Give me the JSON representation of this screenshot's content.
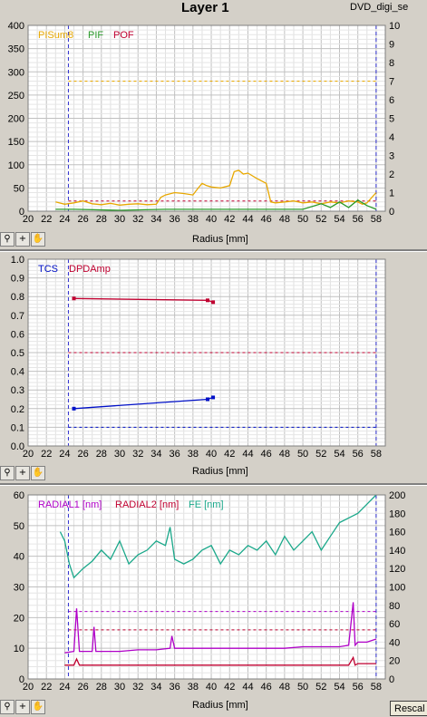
{
  "window": {
    "title": "Layer 1",
    "file_label": "DVD_digi_se"
  },
  "buttons": {
    "rescale": "Rescal"
  },
  "toolbar_icons": [
    "zoom-icon",
    "crosshair-icon",
    "pan-hand-icon"
  ],
  "chart_data": [
    {
      "type": "line",
      "xlabel": "Radius [mm]",
      "x_ticks": [
        "20",
        "22",
        "24",
        "26",
        "28",
        "30",
        "32",
        "34",
        "36",
        "38",
        "40",
        "42",
        "44",
        "46",
        "48",
        "50",
        "52",
        "54",
        "56",
        "58"
      ],
      "xlim": [
        20,
        59
      ],
      "ylim": [
        0,
        400
      ],
      "y_ticks": [
        "0",
        "50",
        "100",
        "150",
        "200",
        "250",
        "300",
        "350",
        "400"
      ],
      "y2lim": [
        0,
        10
      ],
      "y2_ticks": [
        "0",
        "1",
        "2",
        "3",
        "4",
        "5",
        "6",
        "7",
        "8",
        "9",
        "10"
      ],
      "vlines": [
        24.4,
        58
      ],
      "legend": [
        {
          "name": "PISum8",
          "color": "#e8a800"
        },
        {
          "name": "PIF",
          "color": "#2a9a2a"
        },
        {
          "name": "POF",
          "color": "#c00030"
        }
      ],
      "hlines": [
        {
          "y": 280,
          "color": "#e8a800"
        },
        {
          "y": 22,
          "color": "#c00030"
        }
      ],
      "series": [
        {
          "name": "PISum8",
          "color": "#e8a800",
          "axis": "left",
          "x": [
            23,
            24,
            25,
            26,
            27,
            28,
            29,
            30,
            31,
            32,
            33,
            34,
            34.5,
            35,
            36,
            37,
            38,
            38.5,
            39,
            39.5,
            40,
            41,
            42,
            42.5,
            43,
            43.5,
            44,
            45,
            46,
            46.5,
            47,
            48,
            49,
            50,
            51,
            52,
            53,
            54,
            55,
            56,
            56.5,
            57,
            58
          ],
          "y": [
            20,
            15,
            18,
            22,
            16,
            14,
            17,
            13,
            15,
            16,
            14,
            15,
            30,
            35,
            40,
            38,
            35,
            48,
            60,
            55,
            52,
            50,
            55,
            85,
            88,
            80,
            82,
            70,
            60,
            20,
            18,
            20,
            22,
            18,
            20,
            16,
            20,
            18,
            22,
            20,
            15,
            18,
            40
          ]
        },
        {
          "name": "PIF",
          "color": "#2a9a2a",
          "axis": "right",
          "x": [
            23,
            25,
            30,
            35,
            40,
            45,
            50,
            52,
            53,
            54,
            55,
            56,
            57,
            58
          ],
          "y": [
            0.1,
            0.1,
            0.05,
            0.1,
            0.1,
            0.1,
            0.1,
            0.4,
            0.2,
            0.5,
            0.2,
            0.6,
            0.3,
            0.1
          ]
        }
      ]
    },
    {
      "type": "line",
      "xlabel": "Radius [mm]",
      "x_ticks": [
        "20",
        "22",
        "24",
        "26",
        "28",
        "30",
        "32",
        "34",
        "36",
        "38",
        "40",
        "42",
        "44",
        "46",
        "48",
        "50",
        "52",
        "54",
        "56",
        "58"
      ],
      "xlim": [
        20,
        59
      ],
      "ylim": [
        0,
        1
      ],
      "y_ticks": [
        "0.0",
        "0.1",
        "0.2",
        "0.3",
        "0.4",
        "0.5",
        "0.6",
        "0.7",
        "0.8",
        "0.9",
        "1.0"
      ],
      "vlines": [
        24.4,
        58
      ],
      "legend": [
        {
          "name": "TCS",
          "color": "#0010c8"
        },
        {
          "name": "DPDAmp",
          "color": "#c00030"
        }
      ],
      "hlines": [
        {
          "y": 0.5,
          "color": "#c00030"
        },
        {
          "y": 0.1,
          "color": "#0010c8"
        }
      ],
      "series": [
        {
          "name": "DPDAmp",
          "color": "#c00030",
          "axis": "left",
          "x": [
            25,
            39.6,
            40.2
          ],
          "y": [
            0.79,
            0.78,
            0.77
          ]
        },
        {
          "name": "TCS",
          "color": "#0010c8",
          "axis": "left",
          "x": [
            25,
            39.6,
            40.2
          ],
          "y": [
            0.2,
            0.25,
            0.26
          ]
        }
      ]
    },
    {
      "type": "line",
      "xlabel": "Radius [mm]",
      "x_ticks": [
        "20",
        "22",
        "24",
        "26",
        "28",
        "30",
        "32",
        "34",
        "36",
        "38",
        "40",
        "42",
        "44",
        "46",
        "48",
        "50",
        "52",
        "54",
        "56",
        "58"
      ],
      "xlim": [
        20,
        59
      ],
      "ylim": [
        0,
        60
      ],
      "y_ticks": [
        "0",
        "10",
        "20",
        "30",
        "40",
        "50",
        "60"
      ],
      "y2lim": [
        0,
        200
      ],
      "y2_ticks": [
        "0",
        "20",
        "40",
        "60",
        "80",
        "100",
        "120",
        "140",
        "160",
        "180",
        "200"
      ],
      "vlines": [
        24.4,
        58
      ],
      "legend": [
        {
          "name": "RADIAL1 [nm]",
          "color": "#b000c8"
        },
        {
          "name": "RADIAL2 [nm]",
          "color": "#c00030"
        },
        {
          "name": "FE [nm]",
          "color": "#1aa88a"
        }
      ],
      "hlines": [
        {
          "y": 22,
          "color": "#b000c8"
        },
        {
          "y": 16,
          "color": "#c00030"
        }
      ],
      "series": [
        {
          "name": "FE [nm]",
          "color": "#1aa88a",
          "axis": "right",
          "x": [
            23.5,
            24,
            24.5,
            25,
            26,
            27,
            28,
            29,
            30,
            31,
            32,
            33,
            34,
            35,
            35.5,
            36,
            37,
            38,
            39,
            40,
            41,
            42,
            43,
            44,
            45,
            46,
            47,
            48,
            49,
            50,
            51,
            52,
            53,
            54,
            55,
            56,
            57,
            58
          ],
          "y": [
            160,
            150,
            125,
            110,
            120,
            128,
            140,
            130,
            150,
            125,
            135,
            140,
            150,
            145,
            165,
            130,
            125,
            130,
            140,
            145,
            125,
            140,
            135,
            145,
            140,
            150,
            135,
            155,
            140,
            150,
            160,
            140,
            155,
            170,
            175,
            180,
            190,
            200
          ]
        },
        {
          "name": "RADIAL1 [nm]",
          "color": "#b000c8",
          "axis": "left",
          "x": [
            24,
            25,
            25.3,
            25.6,
            26,
            27,
            27.2,
            27.4,
            28,
            30,
            32,
            34,
            35.5,
            35.7,
            36,
            38,
            40,
            42,
            44,
            46,
            48,
            50,
            52,
            54,
            55,
            55.5,
            55.7,
            56,
            57,
            58
          ],
          "y": [
            8.5,
            9,
            23,
            9,
            9,
            9,
            17,
            9,
            9,
            9,
            9.5,
            9.5,
            10,
            14,
            10,
            10,
            10,
            10,
            10,
            10,
            10,
            10.5,
            10.5,
            10.5,
            11,
            25,
            11,
            12,
            12,
            13
          ]
        },
        {
          "name": "RADIAL2 [nm]",
          "color": "#c00030",
          "axis": "left",
          "x": [
            24,
            25,
            25.3,
            25.6,
            26,
            28,
            30,
            32,
            34,
            36,
            38,
            40,
            42,
            44,
            46,
            48,
            50,
            52,
            54,
            55,
            55.5,
            55.7,
            56,
            58
          ],
          "y": [
            4.5,
            4.5,
            6.5,
            4.5,
            4.5,
            4.5,
            4.5,
            4.5,
            4.5,
            4.5,
            4.5,
            4.5,
            4.5,
            4.5,
            4.5,
            4.5,
            4.5,
            4.5,
            4.5,
            4.5,
            7,
            4.5,
            5,
            5
          ]
        }
      ]
    }
  ]
}
